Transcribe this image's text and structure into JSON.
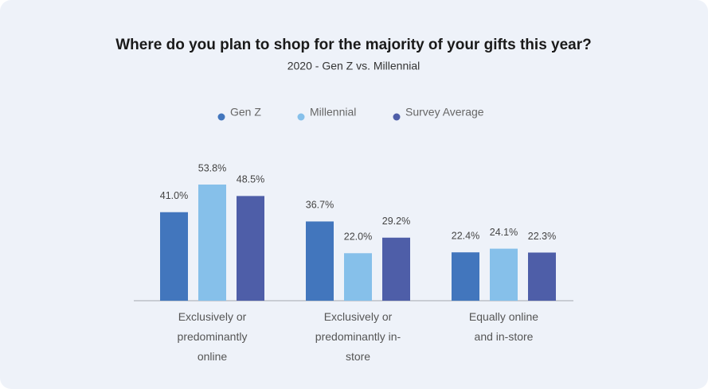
{
  "chart_data": {
    "type": "bar",
    "title": "Where do you plan to shop for the majority of your gifts this year?",
    "subtitle": "2020 - Gen Z vs. Millennial",
    "categories": [
      "Exclusively or predominantly online",
      "Exclusively or predominantly in-store",
      "Equally online and in-store"
    ],
    "series": [
      {
        "name": "Gen Z",
        "color": "#4276bd",
        "values": [
          41.0,
          36.7,
          22.4
        ],
        "value_labels": [
          "41.0%",
          "36.7%",
          "22.4%"
        ]
      },
      {
        "name": "Millennial",
        "color": "#86c0ea",
        "values": [
          53.8,
          22.0,
          24.1
        ],
        "value_labels": [
          "53.8%",
          "22.0%",
          "24.1%"
        ]
      },
      {
        "name": "Survey Average",
        "color": "#4e5ea8",
        "values": [
          48.5,
          29.2,
          22.3
        ],
        "value_labels": [
          "48.5%",
          "29.2%",
          "22.3%"
        ]
      }
    ]
  }
}
